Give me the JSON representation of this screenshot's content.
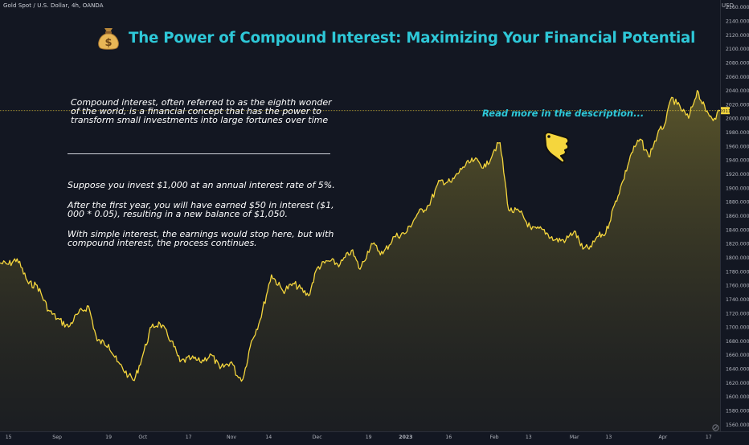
{
  "header": {
    "symbol": "Gold Spot / U.S. Dollar, 4h, OANDA",
    "currency": "USD"
  },
  "title": "The Power of Compound Interest: Maximizing Your Financial Potential",
  "title_icon": "money-bag-icon",
  "notes": {
    "intro": [
      "Compound interest, often referred to as the eighth wonder",
      "of the world, is a financial concept that has the power to",
      "transform small investments into large fortunes over time"
    ],
    "example1": "Suppose you invest $1,000 at an annual interest rate of 5%.",
    "example2": [
      "After the first year, you will have earned $50 in interest ($1,",
      "000 * 0.05), resulting in a new balance of $1,050."
    ],
    "example3": [
      "With simple interest, the earnings would stop here, but with",
      "compound interest, the process continues."
    ],
    "read_more": "Read more in the description...",
    "pointer_icon": "pointing-hand-icon"
  },
  "colors": {
    "background": "#131722",
    "line": "#f5d63d",
    "title": "#2ec8d8",
    "price_label": "#f5d63d"
  },
  "chart_data": {
    "type": "area",
    "title": "Gold Spot / U.S. Dollar, 4h, OANDA",
    "ylabel": "USD",
    "xlabel": "",
    "ylim": [
      1550,
      2170
    ],
    "xlim": [
      "2022-08-12",
      "2023-04-21"
    ],
    "grid": false,
    "last_price_label": "2011",
    "y_ticks": [
      1560,
      1580,
      1600,
      1620,
      1640,
      1660,
      1680,
      1700,
      1720,
      1740,
      1760,
      1780,
      1800,
      1820,
      1840,
      1860,
      1880,
      1900,
      1920,
      1940,
      1960,
      1980,
      2000,
      2020,
      2040,
      2060,
      2080,
      2100,
      2120,
      2140,
      2160
    ],
    "y_tick_labels": [
      "1560.000",
      "1580.000",
      "1600.000",
      "1620.000",
      "1640.000",
      "1660.000",
      "1680.000",
      "1700.000",
      "1720.000",
      "1740.000",
      "1760.000",
      "1780.000",
      "1800.000",
      "1820.000",
      "1840.000",
      "1860.000",
      "1880.000",
      "1900.000",
      "1920.000",
      "1940.000",
      "1960.000",
      "1980.000",
      "2000.000",
      "2020.000",
      "2040.000",
      "2060.000",
      "2080.000",
      "2100.000",
      "2120.000",
      "2140.000",
      "2160.000"
    ],
    "x_ticks": [
      {
        "date": "2022-08-15",
        "label": "15"
      },
      {
        "date": "2022-09-01",
        "label": "Sep"
      },
      {
        "date": "2022-09-19",
        "label": "19"
      },
      {
        "date": "2022-10-01",
        "label": "Oct"
      },
      {
        "date": "2022-10-17",
        "label": "17"
      },
      {
        "date": "2022-11-01",
        "label": "Nov"
      },
      {
        "date": "2022-11-14",
        "label": "14"
      },
      {
        "date": "2022-12-01",
        "label": "Dec"
      },
      {
        "date": "2022-12-19",
        "label": "19"
      },
      {
        "date": "2023-01-01",
        "label": "2023"
      },
      {
        "date": "2023-01-16",
        "label": "16"
      },
      {
        "date": "2023-02-01",
        "label": "Feb"
      },
      {
        "date": "2023-02-13",
        "label": "13"
      },
      {
        "date": "2023-03-01",
        "label": "Mar"
      },
      {
        "date": "2023-03-13",
        "label": "13"
      },
      {
        "date": "2023-04-01",
        "label": "Apr"
      },
      {
        "date": "2023-04-17",
        "label": "17"
      }
    ],
    "series": [
      {
        "x": [
          "2022-08-12",
          "2022-08-15",
          "2022-08-18",
          "2022-08-22",
          "2022-08-25",
          "2022-08-29",
          "2022-09-01",
          "2022-09-05",
          "2022-09-08",
          "2022-09-12",
          "2022-09-15",
          "2022-09-19",
          "2022-09-22",
          "2022-09-26",
          "2022-09-28",
          "2022-10-01",
          "2022-10-04",
          "2022-10-07",
          "2022-10-11",
          "2022-10-14",
          "2022-10-18",
          "2022-10-21",
          "2022-10-25",
          "2022-10-28",
          "2022-11-01",
          "2022-11-03",
          "2022-11-05",
          "2022-11-08",
          "2022-11-11",
          "2022-11-15",
          "2022-11-19",
          "2022-11-23",
          "2022-11-28",
          "2022-12-01",
          "2022-12-05",
          "2022-12-09",
          "2022-12-13",
          "2022-12-16",
          "2022-12-20",
          "2022-12-24",
          "2022-12-28",
          "2023-01-01",
          "2023-01-05",
          "2023-01-09",
          "2023-01-13",
          "2023-01-17",
          "2023-01-21",
          "2023-01-25",
          "2023-01-29",
          "2023-02-01",
          "2023-02-03",
          "2023-02-06",
          "2023-02-10",
          "2023-02-14",
          "2023-02-18",
          "2023-02-22",
          "2023-02-26",
          "2023-03-01",
          "2023-03-04",
          "2023-03-07",
          "2023-03-09",
          "2023-03-12",
          "2023-03-15",
          "2023-03-18",
          "2023-03-21",
          "2023-03-24",
          "2023-03-27",
          "2023-03-30",
          "2023-04-02",
          "2023-04-04",
          "2023-04-06",
          "2023-04-10",
          "2023-04-13",
          "2023-04-16",
          "2023-04-19",
          "2023-04-21"
        ],
        "y": [
          1792,
          1790,
          1798,
          1762,
          1760,
          1724,
          1712,
          1700,
          1718,
          1730,
          1680,
          1675,
          1650,
          1630,
          1623,
          1660,
          1700,
          1705,
          1680,
          1650,
          1655,
          1650,
          1660,
          1640,
          1650,
          1630,
          1625,
          1680,
          1710,
          1775,
          1752,
          1762,
          1745,
          1785,
          1795,
          1790,
          1810,
          1783,
          1820,
          1805,
          1830,
          1835,
          1862,
          1875,
          1910,
          1908,
          1930,
          1940,
          1930,
          1955,
          1965,
          1868,
          1865,
          1840,
          1840,
          1825,
          1825,
          1838,
          1812,
          1815,
          1830,
          1835,
          1875,
          1910,
          1950,
          1970,
          1945,
          1975,
          1995,
          2030,
          2020,
          2000,
          2040,
          2010,
          2000,
          2011
        ]
      }
    ]
  }
}
